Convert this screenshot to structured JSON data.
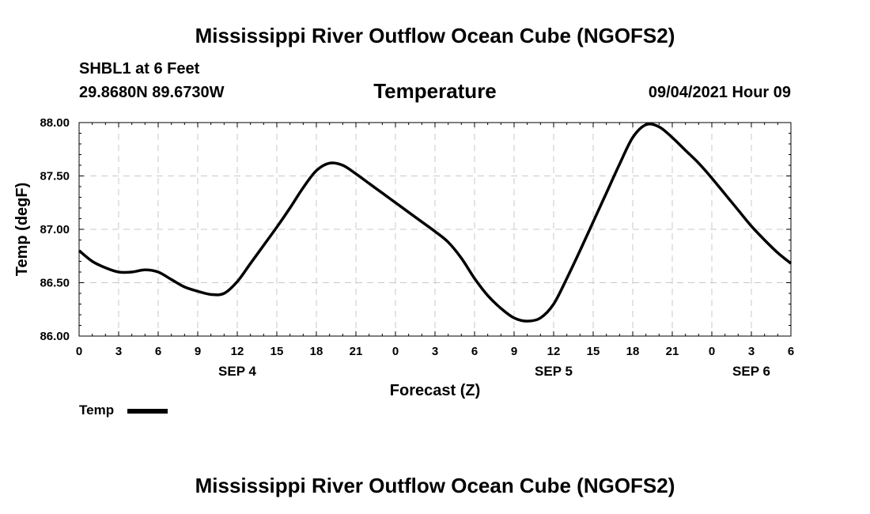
{
  "header": {
    "title": "Mississippi River Outflow Ocean Cube (NGOFS2)",
    "station": "SHBL1 at 6 Feet",
    "coordinates": "29.8680N  89.6730W",
    "subtitle": "Temperature",
    "datetime": "09/04/2021 Hour 09"
  },
  "footer": {
    "title": "Mississippi River Outflow Ocean Cube (NGOFS2)"
  },
  "legend": {
    "label": "Temp",
    "color": "#000000"
  },
  "chart_data": {
    "type": "line",
    "title": "Temperature",
    "xlabel": "Forecast (Z)",
    "ylabel": "Temp (degF)",
    "xlim": [
      0,
      54
    ],
    "ylim": [
      86.0,
      88.0
    ],
    "grid": true,
    "x_ticks": [
      {
        "x": 0,
        "label": "0"
      },
      {
        "x": 3,
        "label": "3"
      },
      {
        "x": 6,
        "label": "6"
      },
      {
        "x": 9,
        "label": "9"
      },
      {
        "x": 12,
        "label": "12"
      },
      {
        "x": 15,
        "label": "15"
      },
      {
        "x": 18,
        "label": "18"
      },
      {
        "x": 21,
        "label": "21"
      },
      {
        "x": 24,
        "label": "0"
      },
      {
        "x": 27,
        "label": "3"
      },
      {
        "x": 30,
        "label": "6"
      },
      {
        "x": 33,
        "label": "9"
      },
      {
        "x": 36,
        "label": "12"
      },
      {
        "x": 39,
        "label": "15"
      },
      {
        "x": 42,
        "label": "18"
      },
      {
        "x": 45,
        "label": "21"
      },
      {
        "x": 48,
        "label": "0"
      },
      {
        "x": 51,
        "label": "3"
      },
      {
        "x": 54,
        "label": "6"
      }
    ],
    "date_labels": [
      {
        "x": 12,
        "label": "SEP 4"
      },
      {
        "x": 36,
        "label": "SEP 5"
      },
      {
        "x": 51,
        "label": "SEP 6"
      }
    ],
    "y_ticks": [
      {
        "y": 86.0,
        "label": "86.00"
      },
      {
        "y": 86.5,
        "label": "86.50"
      },
      {
        "y": 87.0,
        "label": "87.00"
      },
      {
        "y": 87.5,
        "label": "87.50"
      },
      {
        "y": 88.0,
        "label": "88.00"
      }
    ],
    "series": [
      {
        "name": "Temp",
        "color": "#000000",
        "x": [
          0,
          1,
          2,
          3,
          4,
          5,
          6,
          7,
          8,
          9,
          10,
          11,
          12,
          13,
          14,
          15,
          16,
          17,
          18,
          19,
          20,
          21,
          22,
          23,
          24,
          25,
          26,
          27,
          28,
          29,
          30,
          31,
          32,
          33,
          34,
          35,
          36,
          37,
          38,
          39,
          40,
          41,
          42,
          43,
          44,
          45,
          46,
          47,
          48,
          49,
          50,
          51,
          52,
          53,
          54
        ],
        "values": [
          86.8,
          86.7,
          86.64,
          86.6,
          86.6,
          86.62,
          86.6,
          86.53,
          86.46,
          86.42,
          86.39,
          86.4,
          86.51,
          86.68,
          86.85,
          87.02,
          87.2,
          87.39,
          87.55,
          87.62,
          87.6,
          87.52,
          87.43,
          87.34,
          87.25,
          87.16,
          87.07,
          86.98,
          86.88,
          86.73,
          86.54,
          86.38,
          86.26,
          86.17,
          86.14,
          86.17,
          86.3,
          86.54,
          86.8,
          87.07,
          87.34,
          87.61,
          87.86,
          87.98,
          87.96,
          87.86,
          87.74,
          87.62,
          87.48,
          87.33,
          87.18,
          87.03,
          86.9,
          86.78,
          86.68
        ]
      }
    ]
  }
}
